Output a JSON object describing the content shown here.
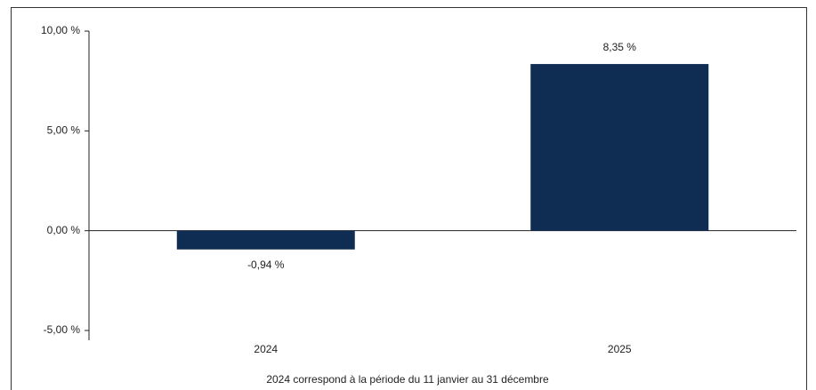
{
  "chart_data": {
    "type": "bar",
    "categories": [
      "2024",
      "2025"
    ],
    "values": [
      -0.94,
      8.35
    ],
    "value_labels": [
      "-0,94 %",
      "8,35 %"
    ],
    "color": "#0f2d52",
    "ylim": [
      -5,
      10
    ],
    "yticks": [
      {
        "value": -5,
        "label": "-5,00 %"
      },
      {
        "value": 0,
        "label": "0,00 %"
      },
      {
        "value": 5,
        "label": "5,00 %"
      },
      {
        "value": 10,
        "label": "10,00 %"
      }
    ],
    "note": "2024 correspond à la période du 11 janvier au 31 décembre"
  }
}
